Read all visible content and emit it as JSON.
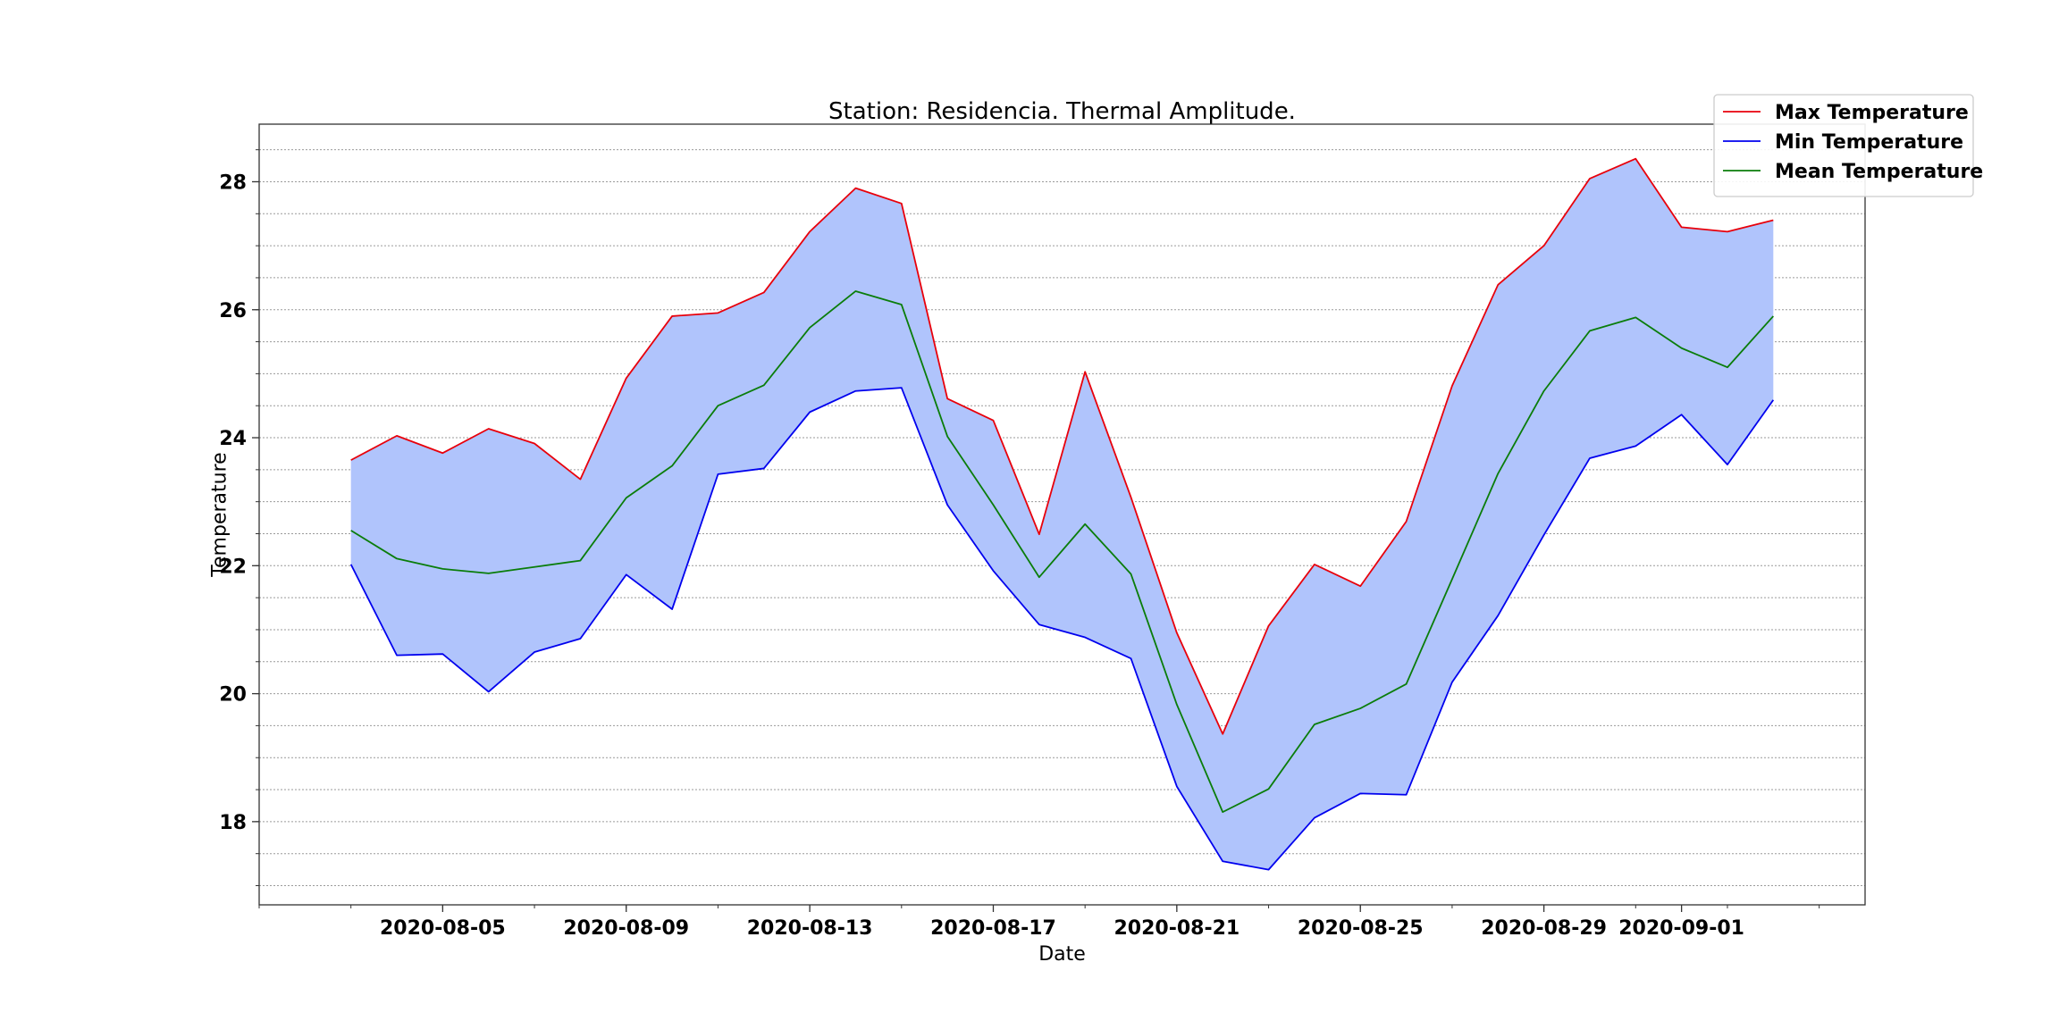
{
  "chart_data": {
    "type": "line",
    "title": "Station: Residencia. Thermal Amplitude.",
    "xlabel": "Date",
    "ylabel": "Temperature",
    "x": [
      "2020-08-03",
      "2020-08-04",
      "2020-08-05",
      "2020-08-06",
      "2020-08-07",
      "2020-08-08",
      "2020-08-09",
      "2020-08-10",
      "2020-08-11",
      "2020-08-12",
      "2020-08-13",
      "2020-08-14",
      "2020-08-15",
      "2020-08-16",
      "2020-08-17",
      "2020-08-18",
      "2020-08-19",
      "2020-08-20",
      "2020-08-21",
      "2020-08-22",
      "2020-08-23",
      "2020-08-24",
      "2020-08-25",
      "2020-08-26",
      "2020-08-27",
      "2020-08-28",
      "2020-08-29",
      "2020-08-30",
      "2020-08-31",
      "2020-09-01",
      "2020-09-02",
      "2020-09-03"
    ],
    "x_ticks": [
      "2020-08-05",
      "2020-08-09",
      "2020-08-13",
      "2020-08-17",
      "2020-08-21",
      "2020-08-25",
      "2020-08-29",
      "2020-09-01"
    ],
    "xlim": [
      "2020-08-01",
      "2020-09-05"
    ],
    "ylim": [
      16.7,
      28.9
    ],
    "y_ticks": [
      18,
      20,
      22,
      24,
      26,
      28
    ],
    "y_minor_step": 0.5,
    "grid": "horizontal dotted",
    "legend_position": "top-right",
    "fill_between": {
      "upper": "Max Temperature",
      "lower": "Min Temperature",
      "color": "#b0c4fc"
    },
    "series": [
      {
        "name": "Max Temperature",
        "color": "#e8000b",
        "values": [
          23.65,
          24.03,
          23.76,
          24.14,
          23.91,
          23.35,
          24.93,
          25.9,
          25.95,
          26.27,
          27.22,
          27.9,
          27.66,
          24.61,
          24.27,
          22.49,
          25.03,
          23.07,
          20.95,
          19.37,
          21.06,
          22.02,
          21.68,
          22.69,
          24.81,
          26.39,
          27.0,
          28.05,
          28.36,
          27.29,
          27.22,
          27.4
        ]
      },
      {
        "name": "Min Temperature",
        "color": "#0000ee",
        "values": [
          22.02,
          20.6,
          20.62,
          20.03,
          20.65,
          20.86,
          21.86,
          21.32,
          23.43,
          23.52,
          24.4,
          24.73,
          24.78,
          22.95,
          21.92,
          21.08,
          20.88,
          20.55,
          18.55,
          17.38,
          17.25,
          18.06,
          18.44,
          18.42,
          20.18,
          21.22,
          22.48,
          23.68,
          23.87,
          24.36,
          23.58,
          24.59
        ]
      },
      {
        "name": "Mean Temperature",
        "color": "#0a7d0a",
        "values": [
          22.55,
          22.11,
          21.95,
          21.88,
          21.98,
          22.08,
          23.06,
          23.56,
          24.5,
          24.82,
          25.72,
          26.29,
          26.08,
          24.02,
          22.95,
          21.82,
          22.65,
          21.87,
          19.83,
          18.15,
          18.51,
          19.52,
          19.77,
          20.15,
          21.79,
          23.44,
          24.73,
          25.67,
          25.88,
          25.4,
          25.1,
          25.9
        ]
      }
    ]
  }
}
